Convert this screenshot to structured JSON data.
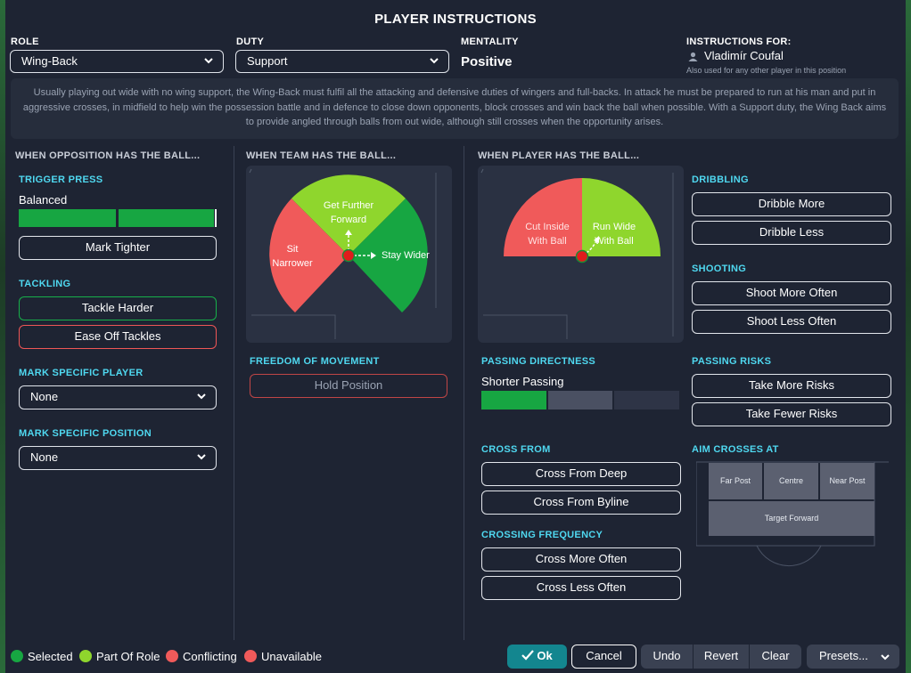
{
  "title": "PLAYER INSTRUCTIONS",
  "role": {
    "label": "ROLE",
    "value": "Wing-Back"
  },
  "duty": {
    "label": "DUTY",
    "value": "Support"
  },
  "mentality": {
    "label": "MENTALITY",
    "value": "Positive"
  },
  "instructions_for": {
    "label": "INSTRUCTIONS FOR:",
    "name": "Vladimír Coufal",
    "note": "Also used for any other player in this position"
  },
  "description": "Usually playing out wide with no wing support, the Wing-Back must fulfil all the attacking and defensive duties of wingers and full-backs. In attack he must be prepared to run at his man and put in aggressive crosses, in midfield to help win the possession battle and in defence to close down opponents, block crosses and win back the ball when possible. With a Support duty, the Wing Back aims to provide angled through balls from out wide, although still crosses when the opportunity arises.",
  "opposition": {
    "heading": "WHEN OPPOSITION HAS THE BALL...",
    "trigger_press": {
      "title": "TRIGGER PRESS",
      "value": "Balanced",
      "level": 0.67
    },
    "mark_tighter": "Mark Tighter",
    "tackling": {
      "title": "TACKLING",
      "harder": "Tackle Harder",
      "ease_off": "Ease Off Tackles"
    },
    "mark_player": {
      "title": "MARK SPECIFIC PLAYER",
      "value": "None"
    },
    "mark_position": {
      "title": "MARK SPECIFIC POSITION",
      "value": "None"
    }
  },
  "team_ball": {
    "heading": "WHEN TEAM HAS THE BALL...",
    "further_forward": "Get Further Forward",
    "sit_narrower": "Sit Narrower",
    "stay_wider": "Stay Wider",
    "freedom": {
      "title": "FREEDOM OF MOVEMENT",
      "hold": "Hold Position"
    }
  },
  "player_ball": {
    "heading": "WHEN PLAYER HAS THE BALL...",
    "cut_inside": "Cut Inside With Ball",
    "run_wide": "Run Wide With Ball",
    "passing_directness": {
      "title": "PASSING DIRECTNESS",
      "value": "Shorter Passing",
      "level": 0.33
    },
    "cross_from": {
      "title": "CROSS FROM",
      "deep": "Cross From Deep",
      "byline": "Cross From Byline"
    },
    "crossing_frequency": {
      "title": "CROSSING FREQUENCY",
      "more": "Cross More Often",
      "less": "Cross Less Often"
    },
    "dribbling": {
      "title": "DRIBBLING",
      "more": "Dribble More",
      "less": "Dribble Less"
    },
    "shooting": {
      "title": "SHOOTING",
      "more": "Shoot More Often",
      "less": "Shoot Less Often"
    },
    "passing_risks": {
      "title": "PASSING RISKS",
      "more": "Take More Risks",
      "fewer": "Take Fewer Risks"
    },
    "aim_crosses": {
      "title": "AIM CROSSES AT",
      "far_post": "Far Post",
      "centre": "Centre",
      "near_post": "Near Post",
      "target_forward": "Target Forward"
    }
  },
  "legend": {
    "selected": "Selected",
    "part_of_role": "Part Of Role",
    "conflicting": "Conflicting",
    "unavailable": "Unavailable"
  },
  "footer": {
    "ok": "Ok",
    "cancel": "Cancel",
    "undo": "Undo",
    "revert": "Revert",
    "clear": "Clear",
    "presets": "Presets..."
  },
  "colors": {
    "selected": "#17a642",
    "part_of_role": "#8fd62d",
    "conflicting": "#f05a5a",
    "unavailable": "#f05a5a",
    "accent": "#4fd8f0",
    "ok_button": "#13868f"
  }
}
